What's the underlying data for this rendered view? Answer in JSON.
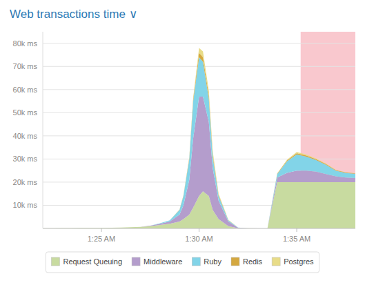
{
  "chart_data": {
    "type": "area",
    "stacked": true,
    "title": "Web transactions time  ∨",
    "x": [
      0,
      0.5,
      1,
      1.5,
      2,
      2.5,
      3,
      3.5,
      4,
      4.5,
      5,
      5.5,
      6,
      6.5,
      7,
      7.2,
      7.5,
      7.7,
      8.0,
      8.2,
      8.5,
      8.7,
      9.0,
      9.5,
      10.0,
      10.5,
      11.0,
      11.2,
      11.5,
      12.0,
      12.5,
      13.0,
      13.5,
      14.0,
      14.5,
      15.0,
      15.5,
      16.0
    ],
    "series": [
      {
        "name": "Request Queuing",
        "color": "#c8dba0",
        "values": [
          100,
          100,
          150,
          150,
          200,
          200,
          250,
          300,
          400,
          500,
          700,
          1000,
          1500,
          2000,
          3000,
          4000,
          6000,
          9000,
          14000,
          16000,
          14000,
          8000,
          4000,
          1000,
          100,
          50,
          0,
          0,
          0,
          20000,
          20000,
          20000,
          20000,
          20000,
          20000,
          20000,
          20000,
          20000
        ]
      },
      {
        "name": "Middleware",
        "color": "#b49dcc",
        "values": [
          0,
          0,
          0,
          0,
          0,
          0,
          0,
          0,
          0,
          0,
          0,
          200,
          500,
          1000,
          3000,
          6000,
          15000,
          30000,
          43000,
          41000,
          32000,
          18000,
          8000,
          2000,
          200,
          50,
          0,
          0,
          0,
          2000,
          4000,
          5000,
          5000,
          4500,
          3500,
          2500,
          2000,
          1800
        ]
      },
      {
        "name": "Ruby",
        "color": "#82d4e8",
        "values": [
          0,
          0,
          0,
          0,
          0,
          0,
          0,
          0,
          0,
          0,
          0,
          0,
          200,
          500,
          2000,
          4000,
          9000,
          16000,
          17000,
          15000,
          10000,
          5000,
          2000,
          500,
          50,
          0,
          0,
          0,
          0,
          1500,
          5000,
          7000,
          6000,
          5000,
          4000,
          2500,
          2000,
          1800
        ]
      },
      {
        "name": "Redis",
        "color": "#d4a840",
        "values": [
          0,
          0,
          0,
          0,
          0,
          0,
          0,
          0,
          0,
          0,
          0,
          0,
          0,
          0,
          100,
          200,
          500,
          1000,
          2000,
          2000,
          1500,
          1000,
          500,
          100,
          0,
          0,
          0,
          0,
          0,
          200,
          400,
          500,
          500,
          400,
          300,
          200,
          200,
          150
        ]
      },
      {
        "name": "Postgres",
        "color": "#e8dc88",
        "values": [
          0,
          0,
          0,
          0,
          0,
          0,
          0,
          0,
          0,
          0,
          0,
          0,
          0,
          0,
          50,
          100,
          300,
          500,
          2000,
          2500,
          2000,
          1500,
          500,
          100,
          0,
          0,
          0,
          0,
          0,
          100,
          300,
          500,
          400,
          300,
          200,
          150,
          100,
          100
        ]
      }
    ],
    "span": {
      "from": 13.2,
      "to": 17.0,
      "color": "#f9c8ce"
    },
    "xlim": [
      0,
      16.0
    ],
    "xticks": [
      {
        "value": 3.0,
        "label": "1:25 AM"
      },
      {
        "value": 8.0,
        "label": "1:30 AM"
      },
      {
        "value": 13.0,
        "label": "1:35 AM"
      }
    ],
    "ylim": [
      0,
      85000
    ],
    "yticks": [
      {
        "value": 10000,
        "label": "10k ms"
      },
      {
        "value": 20000,
        "label": "20k ms"
      },
      {
        "value": 30000,
        "label": "30k ms"
      },
      {
        "value": 40000,
        "label": "40k ms"
      },
      {
        "value": 50000,
        "label": "50k ms"
      },
      {
        "value": 60000,
        "label": "60k ms"
      },
      {
        "value": 70000,
        "label": "70k ms"
      },
      {
        "value": 80000,
        "label": "80k ms"
      }
    ],
    "grid": true,
    "legend": "bottom"
  }
}
